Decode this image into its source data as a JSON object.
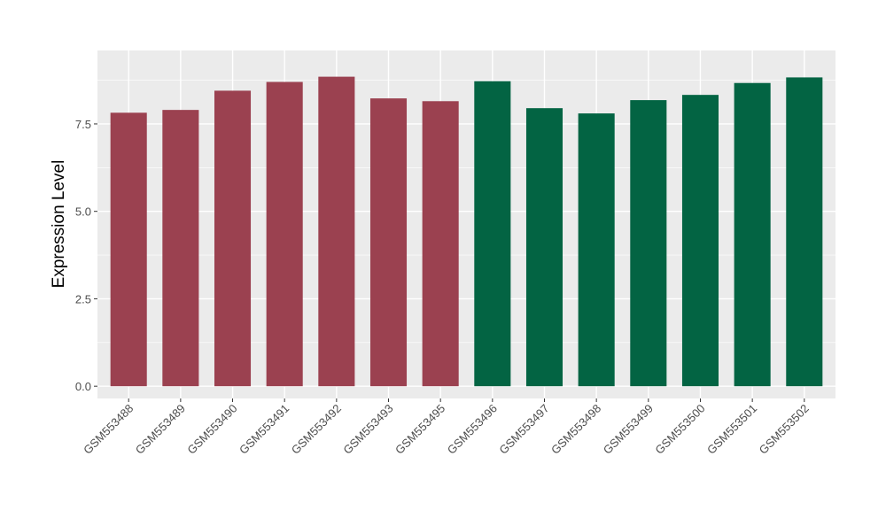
{
  "chart_data": {
    "type": "bar",
    "title": "",
    "xlabel": "",
    "ylabel": "Expression Level",
    "ylim": [
      -0.35,
      9.6
    ],
    "yticks": [
      0.0,
      2.5,
      5.0,
      7.5
    ],
    "ytick_labels": [
      "0.0",
      "2.5",
      "5.0",
      "7.5"
    ],
    "grid": true,
    "legend": "none",
    "colors": {
      "group_1": "#9b4150",
      "group_2": "#036443",
      "panel_bg": "#ebebeb",
      "grid": "#ffffff"
    },
    "categories": [
      "GSM553488",
      "GSM553489",
      "GSM553490",
      "GSM553491",
      "GSM553492",
      "GSM553493",
      "GSM553495",
      "GSM553496",
      "GSM553497",
      "GSM553498",
      "GSM553499",
      "GSM553500",
      "GSM553501",
      "GSM553502"
    ],
    "values": [
      7.82,
      7.9,
      8.45,
      8.7,
      8.85,
      8.23,
      8.15,
      8.72,
      7.95,
      7.8,
      8.18,
      8.33,
      8.67,
      8.83
    ],
    "bar_groups": [
      "group_1",
      "group_1",
      "group_1",
      "group_1",
      "group_1",
      "group_1",
      "group_1",
      "group_2",
      "group_2",
      "group_2",
      "group_2",
      "group_2",
      "group_2",
      "group_2"
    ]
  }
}
